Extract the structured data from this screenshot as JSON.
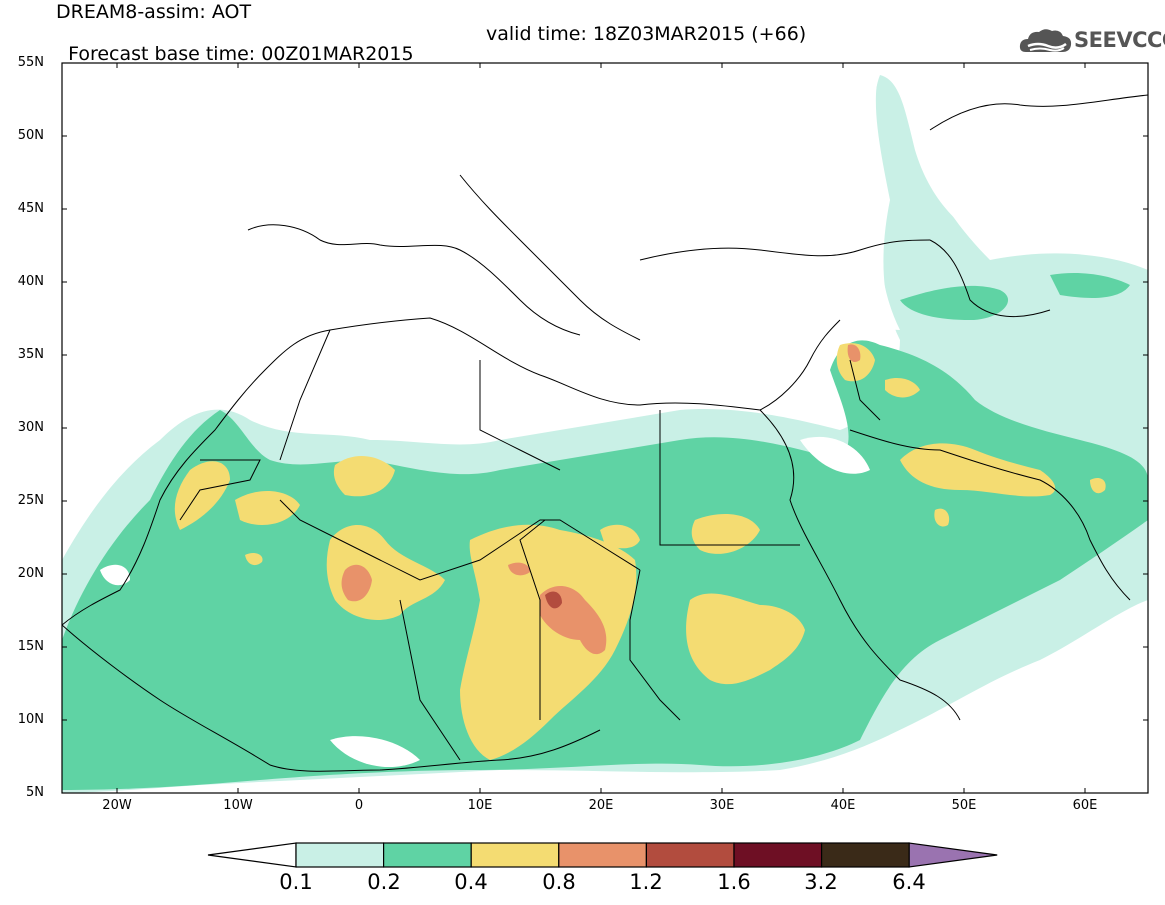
{
  "header": {
    "title_line1": "DREAM8-assim: AOT",
    "title_line2_base": "Forecast base time: 00Z01MAR2015",
    "title_line2_valid": "valid time: 18Z03MAR2015 (+66)",
    "logo_text": "SEEVCCC",
    "logo_icon": "cloud-icon"
  },
  "map": {
    "lat_range": [
      5,
      55
    ],
    "lon_range": [
      -25,
      65
    ],
    "lat_ticks": [
      "55N",
      "50N",
      "45N",
      "40N",
      "35N",
      "30N",
      "25N",
      "20N",
      "15N",
      "10N",
      "5N"
    ],
    "lon_ticks": [
      "20W",
      "10W",
      "0",
      "10E",
      "20E",
      "30E",
      "40E",
      "50E",
      "60E"
    ]
  },
  "legend": {
    "levels": [
      "0.1",
      "0.2",
      "0.4",
      "0.8",
      "1.2",
      "1.6",
      "3.2",
      "6.4"
    ],
    "colors": [
      "#c9f0e6",
      "#5fd3a4",
      "#f4dc72",
      "#e8926a",
      "#b24c3e",
      "#6e0f24",
      "#3a2a18",
      "#9a73b0"
    ],
    "under_color": "#ffffff"
  }
}
